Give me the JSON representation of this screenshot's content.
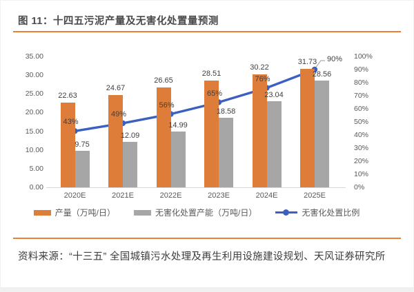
{
  "header": {
    "title": "图 11：十四五污泥产量及无害化处置量预测"
  },
  "chart_data": {
    "type": "bar+line",
    "categories": [
      "2020E",
      "2021E",
      "2022E",
      "2023E",
      "2024E",
      "2025E"
    ],
    "series": [
      {
        "name": "产量（万吨/日）",
        "type": "bar",
        "axis": "left",
        "color": "#DE7D3A",
        "values": [
          22.63,
          24.67,
          26.65,
          28.51,
          30.22,
          31.73
        ],
        "labels": [
          "22.63",
          "24.67",
          "26.65",
          "28.51",
          "30.22",
          "31.73"
        ]
      },
      {
        "name": "无害化处置产能（万吨/日）",
        "type": "bar",
        "axis": "left",
        "color": "#A6A6A6",
        "values": [
          9.75,
          12.09,
          14.99,
          18.58,
          23.04,
          28.56
        ],
        "labels": [
          "9.75",
          "12.09",
          "14.99",
          "18.58",
          "23.04",
          "28.56"
        ]
      },
      {
        "name": "无害化处置比例",
        "type": "line",
        "axis": "right",
        "color": "#3C60C2",
        "values": [
          43,
          49,
          56,
          65,
          76,
          90
        ],
        "labels": [
          "43%",
          "49%",
          "56%",
          "65%",
          "76%",
          "90%"
        ],
        "last_label_callout": true
      }
    ],
    "left_axis": {
      "ticks": [
        "35.00",
        "30.00",
        "25.00",
        "20.00",
        "15.00",
        "10.00",
        "5.00",
        "0.00"
      ],
      "min": 0,
      "max": 35
    },
    "right_axis": {
      "ticks": [
        "100%",
        "90%",
        "80%",
        "70%",
        "60%",
        "50%",
        "40%",
        "30%",
        "20%",
        "10%",
        "0%"
      ],
      "min": 0,
      "max": 100
    },
    "grid": false,
    "legend_position": "bottom"
  },
  "footer": {
    "source": "资料来源：“十三五” 全国城镇污水处理及再生利用设施建设规划、天风证券研究所"
  },
  "colors": {
    "accent_rule": "#ED7D31",
    "bar_production": "#DE7D3A",
    "bar_capacity": "#A6A6A6",
    "line_ratio": "#3C60C2",
    "axis_text": "#595959"
  }
}
